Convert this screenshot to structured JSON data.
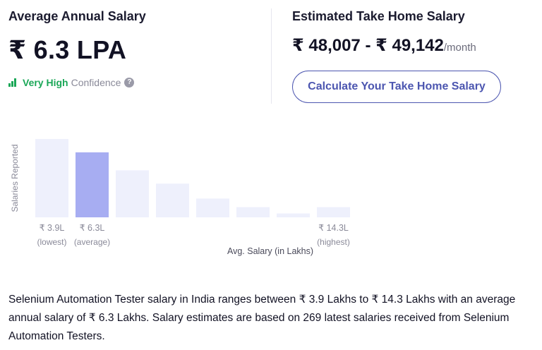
{
  "average": {
    "title": "Average Annual Salary",
    "value": "₹ 6.3 LPA",
    "confidence_level": "Very High",
    "confidence_word": "Confidence",
    "help_icon": "?"
  },
  "take_home": {
    "title": "Estimated Take Home Salary",
    "range": "₹ 48,007 - ₹ 49,142",
    "unit": "/month",
    "button_label": "Calculate Your Take Home Salary"
  },
  "chart_data": {
    "type": "bar",
    "ylabel": "Salaries Reported",
    "xlabel": "Avg. Salary (in Lakhs)",
    "values": [
      100,
      83,
      60,
      43,
      24,
      13,
      5,
      13
    ],
    "highlight_index": 1,
    "tick_labels": [
      {
        "bar": 0,
        "value": "₹ 3.9L",
        "caption": "(lowest)"
      },
      {
        "bar": 1,
        "value": "₹ 6.3L",
        "caption": "(average)"
      },
      {
        "bar": 7,
        "value": "₹ 14.3L",
        "caption": "(highest)"
      }
    ],
    "colors": {
      "bar": "#eef0fc",
      "highlight": "#a7adf2",
      "text": "#8a8a99"
    }
  },
  "description": "Selenium Automation Tester salary in India ranges between ₹ 3.9 Lakhs to ₹ 14.3 Lakhs with an average annual salary of ₹ 6.3 Lakhs. Salary estimates are based on 269 latest salaries received from Selenium Automation Testers."
}
